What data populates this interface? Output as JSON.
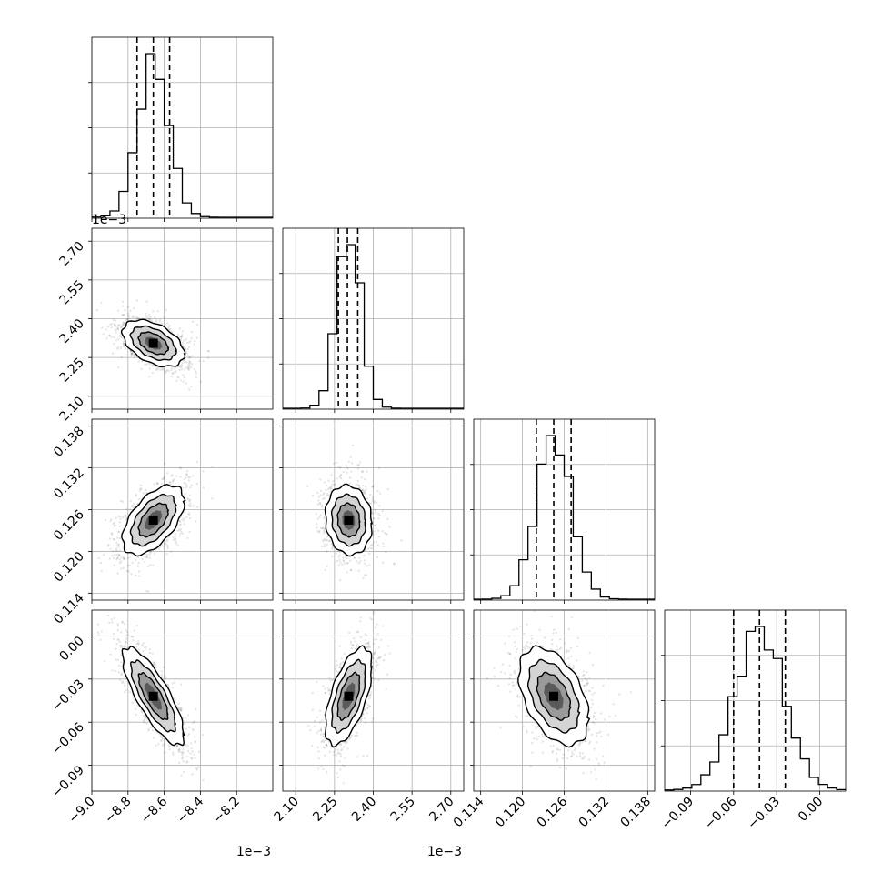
{
  "chart_data": {
    "type": "corner",
    "parameters": [
      {
        "range": [
          -9.0,
          -8.0
        ],
        "ticks": [
          "−9.0",
          "−8.8",
          "−8.6",
          "−8.4",
          "−8.2"
        ],
        "tick_values": [
          -9.0,
          -8.8,
          -8.6,
          -8.4,
          -8.2
        ],
        "offset_label": "1e−3"
      },
      {
        "range": [
          2.05,
          2.75
        ],
        "ticks": [
          "2.10",
          "2.25",
          "2.40",
          "2.55",
          "2.70"
        ],
        "tick_values": [
          2.1,
          2.25,
          2.4,
          2.55,
          2.7
        ],
        "offset_label": "1e−3"
      },
      {
        "range": [
          0.113,
          0.139
        ],
        "ticks": [
          "0.114",
          "0.120",
          "0.126",
          "0.132",
          "0.138"
        ],
        "tick_values": [
          0.114,
          0.12,
          0.126,
          0.132,
          0.138
        ],
        "offset_label": ""
      },
      {
        "range": [
          -0.108,
          0.018
        ],
        "ticks": [
          "−0.09",
          "−0.06",
          "−0.03",
          "0.00"
        ],
        "tick_values": [
          -0.09,
          -0.06,
          -0.03,
          0.0
        ],
        "offset_label": ""
      }
    ],
    "marginals": [
      {
        "mean": -8.66,
        "sd": 0.085,
        "quantiles": [
          -8.75,
          -8.66,
          -8.57
        ]
      },
      {
        "mean": 2.305,
        "sd": 0.045,
        "quantiles": [
          2.265,
          2.3,
          2.34
        ]
      },
      {
        "mean": 0.1245,
        "sd": 0.0025,
        "quantiles": [
          0.122,
          0.1245,
          0.127
        ]
      },
      {
        "mean": -0.042,
        "sd": 0.017,
        "quantiles": [
          -0.06,
          -0.042,
          -0.024
        ]
      }
    ],
    "correlations": {
      "1-0": -0.45,
      "2-0": 0.55,
      "2-1": -0.1,
      "3-0": -0.8,
      "3-1": 0.6,
      "3-2": -0.45
    },
    "grid": true,
    "left_offset_label": "1e−3"
  }
}
